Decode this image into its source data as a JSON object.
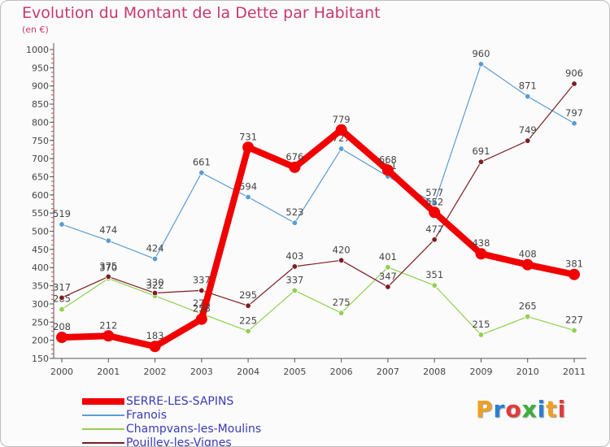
{
  "title": "Evolution du Montant de la Dette par Habitant",
  "unit": "(en €)",
  "logo": {
    "text": "Proxiti",
    "colors": [
      "#f0a020",
      "#2a7fd4",
      "#e23a3a",
      "#3aaf3a",
      "#2a7fd4",
      "#f0a020",
      "#e23a3a"
    ]
  },
  "chart_data": {
    "type": "line",
    "categories": [
      "2000",
      "2001",
      "2002",
      "2003",
      "2004",
      "2005",
      "2006",
      "2007",
      "2008",
      "2009",
      "2010",
      "2011"
    ],
    "ylim": [
      150,
      1000
    ],
    "yticks": [
      150,
      200,
      250,
      300,
      350,
      400,
      450,
      500,
      550,
      600,
      650,
      700,
      750,
      800,
      850,
      900,
      950,
      1000
    ],
    "grid": false,
    "legend": "bottom-left",
    "series": [
      {
        "name": "SERRE-LES-SAPINS",
        "color": "#f00000",
        "width": 8,
        "marker": 7,
        "values": [
          208,
          212,
          183,
          258,
          731,
          676,
          779,
          668,
          552,
          438,
          408,
          381
        ],
        "labels": [
          "208",
          "212",
          "183",
          "258",
          "731",
          "676",
          "779",
          "668",
          "552",
          "438",
          "408",
          "381"
        ]
      },
      {
        "name": "Franois",
        "color": "#5b9bd5",
        "width": 1.2,
        "marker": 3.3,
        "values": [
          519,
          474,
          424,
          661,
          594,
          523,
          727,
          651,
          577,
          960,
          871,
          797
        ],
        "labels": [
          "519",
          "474",
          "424",
          "661",
          "594",
          "523",
          "727",
          "651",
          "577",
          "960",
          "871",
          "797"
        ]
      },
      {
        "name": "Champvans-les-Moulins",
        "color": "#92d050",
        "width": 1.2,
        "marker": 3.3,
        "values": [
          285,
          370,
          322,
          273,
          225,
          337,
          275,
          401,
          351,
          215,
          265,
          227
        ],
        "labels": [
          "285",
          "370",
          "322",
          "273",
          "225",
          "337",
          "275",
          "401",
          "351",
          "215",
          "265",
          "227"
        ]
      },
      {
        "name": "Pouilley-les-Vignes",
        "color": "#7b1e24",
        "width": 1.2,
        "marker": 3.3,
        "values": [
          317,
          375,
          330,
          337,
          295,
          403,
          420,
          347,
          477,
          691,
          749,
          906
        ],
        "labels": [
          "317",
          "375",
          "330",
          "337",
          "295",
          "403",
          "420",
          "347",
          "477",
          "691",
          "749",
          "906"
        ]
      }
    ]
  }
}
